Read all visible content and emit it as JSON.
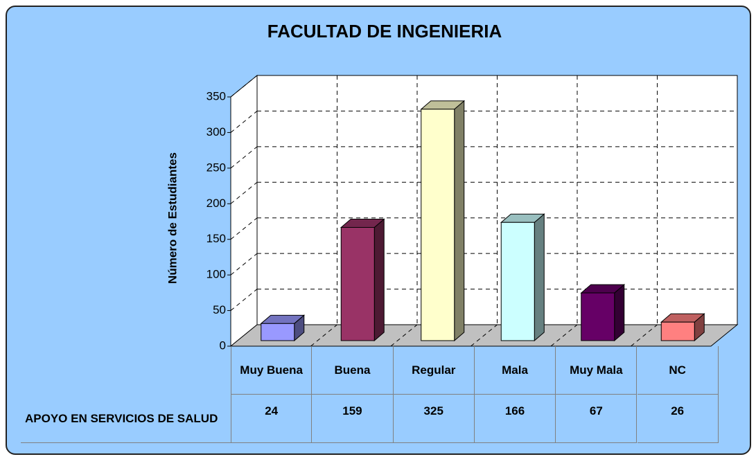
{
  "chart_data": {
    "type": "bar3d",
    "title": "FACULTAD DE INGENIERIA",
    "y_label": "Número de Estudiantes",
    "categories": [
      "Muy Buena",
      "Buena",
      "Regular",
      "Mala",
      "Muy Mala",
      "NC"
    ],
    "series": [
      {
        "name": "APOYO EN SERVICIOS DE SALUD",
        "values": [
          24,
          159,
          325,
          166,
          67,
          26
        ],
        "colors": [
          "#9999ff",
          "#993366",
          "#ffffcc",
          "#ccffff",
          "#660066",
          "#ff8080"
        ]
      }
    ],
    "ylim": [
      0,
      350
    ],
    "yticks": [
      0,
      50,
      100,
      150,
      200,
      250,
      300,
      350
    ],
    "grid": true
  }
}
